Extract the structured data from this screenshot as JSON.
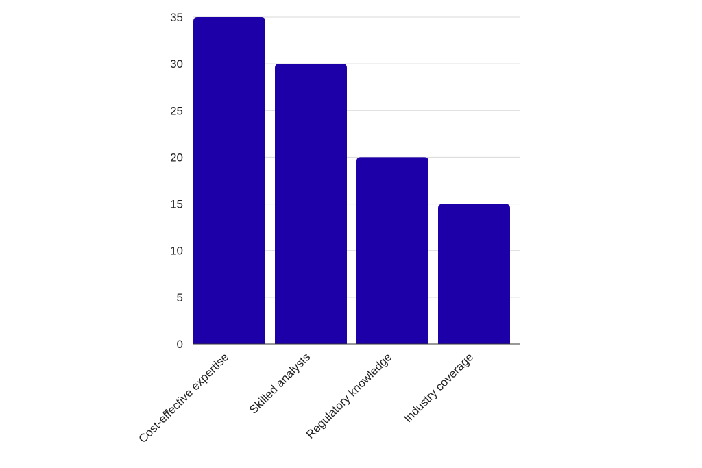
{
  "chart_data": {
    "type": "bar",
    "categories": [
      "Cost-effective expertise",
      "Skilled analysts",
      "Regulatory knowledge",
      "Industry coverage"
    ],
    "values": [
      35,
      30,
      20,
      15
    ],
    "title": "",
    "xlabel": "",
    "ylabel": "",
    "ylim": [
      0,
      35
    ],
    "yticks": [
      0,
      5,
      10,
      15,
      20,
      25,
      30,
      35
    ],
    "grid": true,
    "legend": "none",
    "bar_color": "#1e00a8"
  }
}
